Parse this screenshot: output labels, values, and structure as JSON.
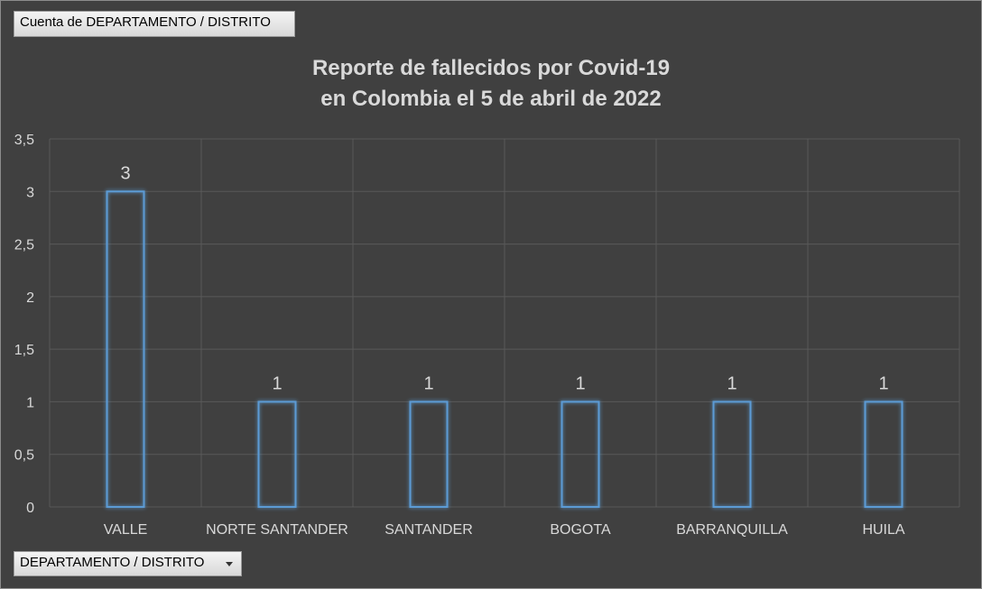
{
  "pivot": {
    "values_field": "Cuenta de DEPARTAMENTO / DISTRITO",
    "axis_field": "DEPARTAMENTO / DISTRITO"
  },
  "chart_data": {
    "type": "bar",
    "title_lines": [
      "Reporte de fallecidos por Covid-19",
      "en Colombia el 5 de abril de 2022"
    ],
    "categories": [
      "VALLE",
      "NORTE SANTANDER",
      "SANTANDER",
      "BOGOTA",
      "BARRANQUILLA",
      "HUILA"
    ],
    "values": [
      3,
      1,
      1,
      1,
      1,
      1
    ],
    "data_labels": [
      "3",
      "1",
      "1",
      "1",
      "1",
      "1"
    ],
    "ylim": [
      0,
      3.5
    ],
    "yticks": [
      "0",
      "0,5",
      "1",
      "1,5",
      "2",
      "2,5",
      "3",
      "3,5"
    ],
    "ytick_values": [
      0,
      0.5,
      1,
      1.5,
      2,
      2.5,
      3,
      3.5
    ],
    "grid": true,
    "legend": "none",
    "colors": {
      "bar_outline": "#5b9bd5",
      "bar_fill": "none",
      "text": "#d9d9d9",
      "background": "#404040",
      "grid": "#595959"
    }
  }
}
